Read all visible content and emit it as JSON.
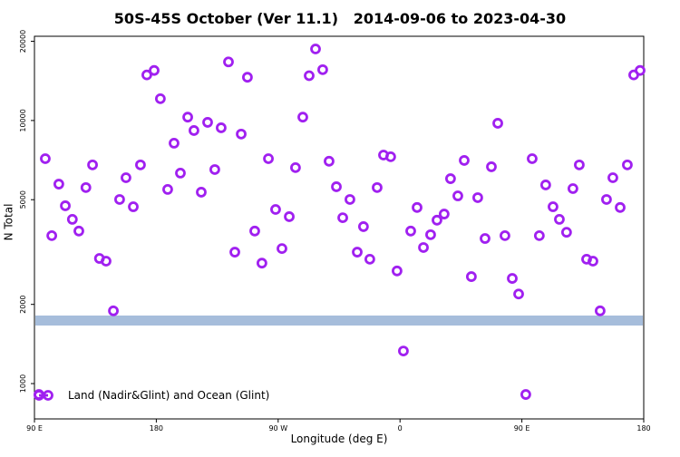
{
  "chart_data": {
    "type": "scatter",
    "title": "50S-45S October (Ver 11.1)   2014-09-06 to 2023-04-30",
    "x_label": "Longitude (deg E)",
    "y_label": "N Total",
    "xlim": [
      90,
      540
    ],
    "xticks": [
      {
        "value": 90,
        "label": "90 E"
      },
      180,
      {
        "value": 270,
        "label": "90 W"
      },
      {
        "value": 360,
        "label": "0"
      },
      {
        "value": 450,
        "label": "90 E"
      },
      {
        "value": 540,
        "label": "180"
      }
    ],
    "ylim": [
      734,
      20900
    ],
    "yticks": [
      1000,
      2000,
      5000,
      10000,
      20000
    ],
    "log_y": true,
    "legend": "bottom-left",
    "band": {
      "range": [
        1662,
        1814
      ],
      "color": "#a6bddb"
    },
    "series": [
      {
        "name": "Land (Nadir&Glint) and Ocean (Glint)",
        "color": "#a020f0",
        "x": [
          93.3,
          98,
          102.8,
          108,
          112.8,
          118,
          122.8,
          128,
          132.9,
          138,
          142.9,
          148.3,
          152.9,
          157.6,
          163,
          168.3,
          173,
          178.4,
          183,
          188.4,
          193.1,
          197.8,
          203.2,
          207.8,
          213.2,
          217.9,
          223.2,
          227.9,
          233.3,
          238,
          242.7,
          247.3,
          252.7,
          258,
          262.8,
          268.1,
          272.8,
          278.2,
          282.8,
          288.2,
          292.9,
          297.6,
          302.9,
          307.6,
          313,
          317.7,
          323,
          328.4,
          333,
          337.7,
          343.1,
          347.8,
          353.1,
          357.8,
          362.5,
          367.9,
          372.6,
          377.3,
          382.6,
          387.3,
          392.6,
          397.3,
          402.7,
          407.4,
          412.7,
          417.4,
          422.8,
          427.5,
          432.2,
          437.5,
          442.9,
          447.6,
          452.9,
          457.6,
          462.9,
          467.6,
          473,
          477.7,
          483,
          487.7,
          492.4,
          497.8,
          502.5,
          507.8,
          512.5,
          517.2,
          522.6,
          527.9,
          532.6,
          537.3
        ],
        "values": [
          909,
          7160,
          3650,
          5730,
          4740,
          4210,
          3800,
          5560,
          6780,
          2990,
          2920,
          1890,
          5010,
          6060,
          4700,
          6780,
          14900,
          15500,
          12100,
          5470,
          8200,
          6310,
          10300,
          9160,
          5340,
          9840,
          6510,
          9380,
          16700,
          3160,
          8880,
          14600,
          3800,
          2870,
          7160,
          4590,
          3260,
          4310,
          6620,
          10300,
          14800,
          18700,
          15600,
          7000,
          5600,
          4270,
          5010,
          3160,
          3950,
          2970,
          5560,
          7390,
          7280,
          2680,
          1330,
          3800,
          4670,
          3290,
          3680,
          4180,
          4410,
          6010,
          5170,
          7050,
          2550,
          5090,
          3560,
          6670,
          9760,
          3650,
          2510,
          2190,
          909,
          7160,
          3650,
          5690,
          4700,
          4210,
          3760,
          5510,
          6780,
          2970,
          2920,
          1890,
          5010,
          6060,
          4670,
          6780,
          14900,
          15500
        ]
      }
    ]
  }
}
